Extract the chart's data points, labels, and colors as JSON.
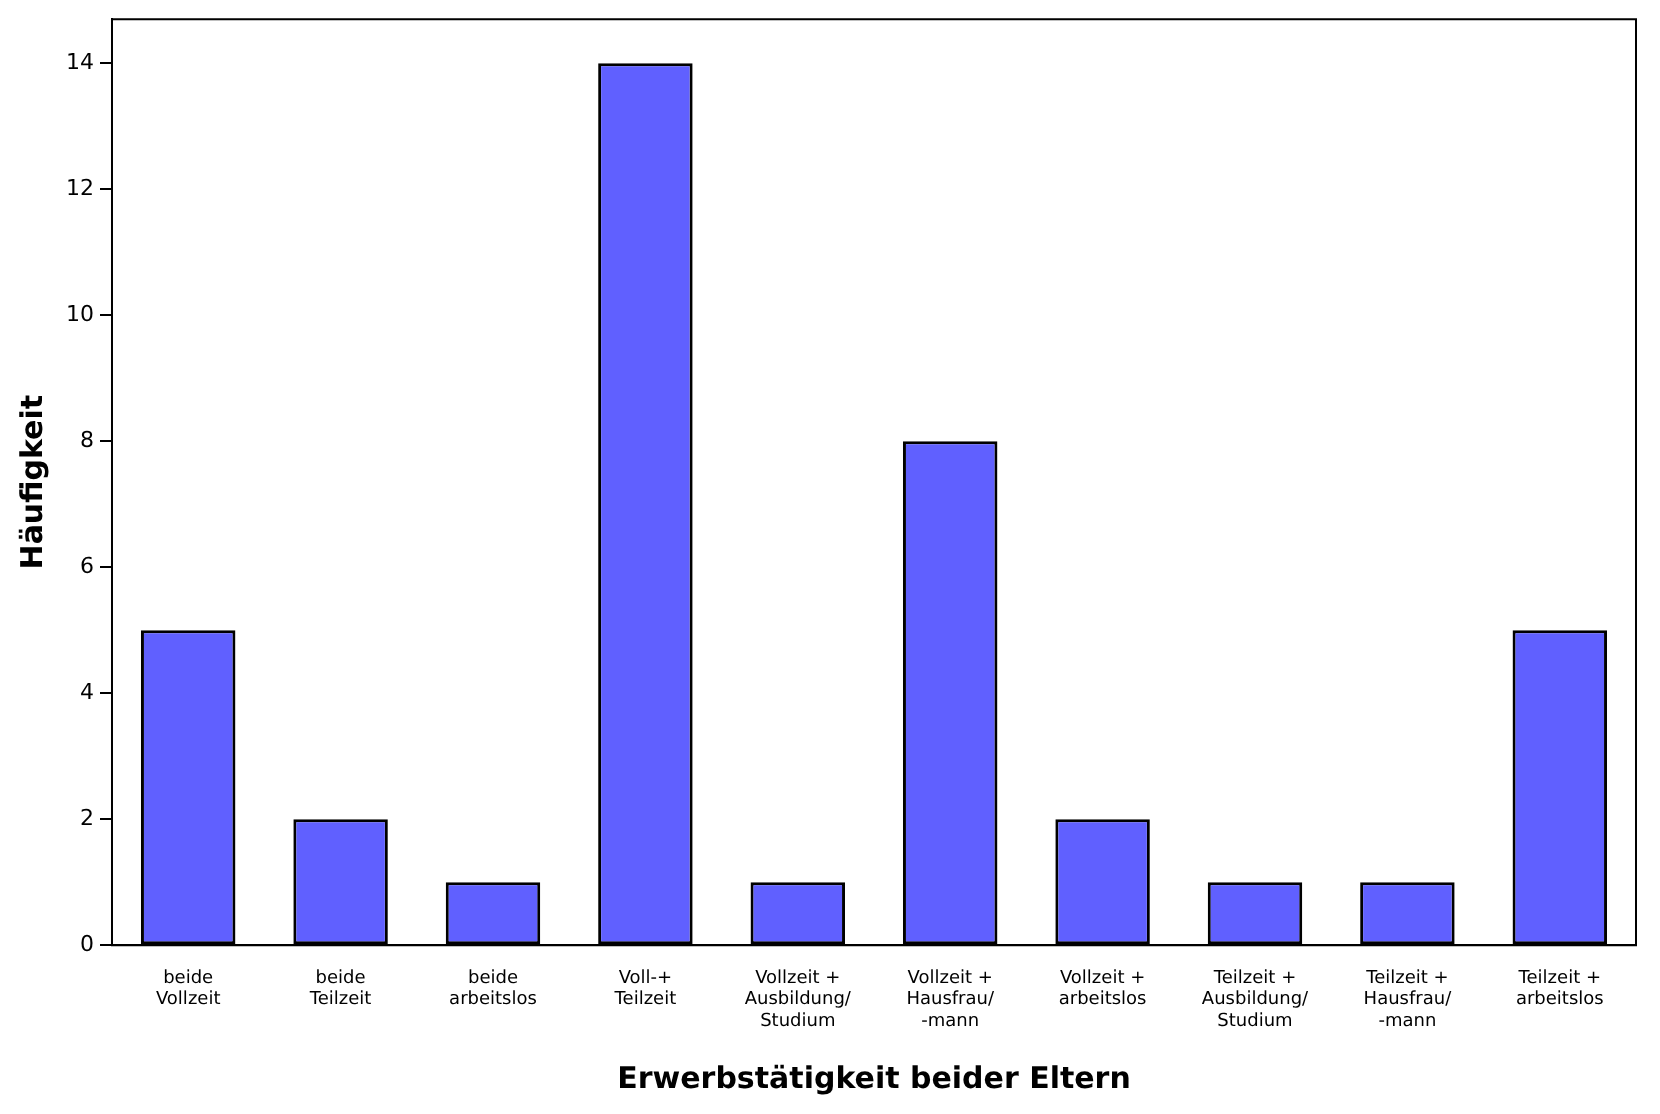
{
  "chart_data": {
    "type": "bar",
    "xlabel": "Erwerbstätigkeit beider Eltern",
    "ylabel": "Häufigkeit",
    "categories": [
      "beide\nVollzeit",
      "beide\nTeilzeit",
      "beide\narbeitslos",
      "Voll-+\nTeilzeit",
      "Vollzeit +\nAusbildung/\nStudium",
      "Vollzeit +\nHausfrau/\n-mann",
      "Vollzeit +\narbeitslos",
      "Teilzeit +\nAusbildung/\nStudium",
      "Teilzeit +\nHausfrau/\n-mann",
      "Teilzeit +\narbeitslos"
    ],
    "values": [
      5,
      2,
      1,
      14,
      1,
      8,
      2,
      1,
      1,
      5
    ],
    "color": "#6060ff",
    "ylim": [
      0,
      14.7
    ],
    "yticks": [
      0,
      2,
      4,
      6,
      8,
      10,
      12,
      14
    ],
    "grid": false,
    "legend": false
  }
}
